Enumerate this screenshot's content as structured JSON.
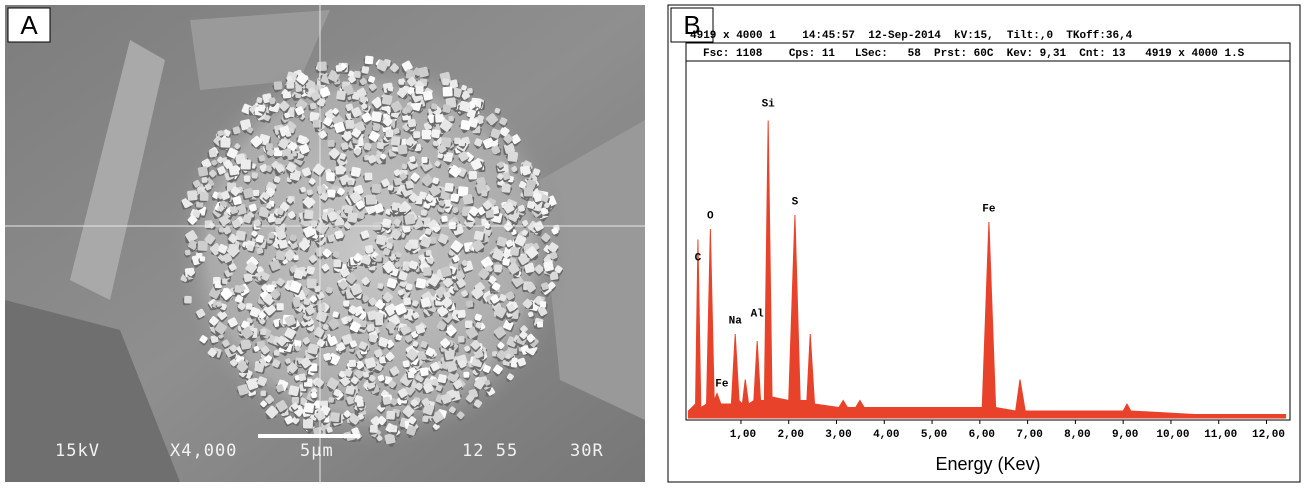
{
  "panel_a": {
    "label": "A",
    "voltage": "15kV",
    "magnification": "X4,000",
    "scale": "5µm",
    "code": "12 55",
    "detector": "30R"
  },
  "chart_data": {
    "type": "area",
    "panel_label": "B",
    "header_lines": [
      "4919 x 4000 1    14:45:57  12-Sep-2014  kV:15,  Tilt:,0  TKoff:36,4",
      "Fsc: 1108    Cps: 11   LSec:   58  Prst: 60C  Kev: 9,31  Cnt: 13   4919 x 4000 1.S"
    ],
    "xlabel": "Energy (Kev)",
    "color": "#e8432a",
    "x": [
      -0.1,
      0.05,
      0.1,
      0.16,
      0.28,
      0.36,
      0.44,
      0.5,
      0.58,
      0.8,
      0.88,
      0.96,
      1.03,
      1.09,
      1.16,
      1.27,
      1.34,
      1.41,
      1.49,
      1.57,
      1.65,
      2.0,
      2.13,
      2.24,
      2.38,
      2.45,
      2.54,
      3.05,
      3.14,
      3.23,
      3.4,
      3.49,
      3.58,
      4.5,
      5.5,
      6.05,
      6.19,
      6.33,
      6.75,
      6.84,
      6.95,
      8.0,
      9.0,
      9.08,
      9.16,
      10.5,
      12.4
    ],
    "values": [
      2,
      4,
      51,
      3,
      4,
      54,
      5,
      7,
      4,
      4,
      24,
      5,
      4,
      11,
      4,
      5,
      22,
      5,
      5,
      85,
      6,
      5,
      58,
      5,
      5,
      24,
      4,
      3,
      5,
      3,
      3,
      5,
      3,
      3,
      3,
      3,
      56,
      3,
      2,
      11,
      2,
      2,
      2,
      4,
      2,
      1,
      1
    ],
    "peak_labels": [
      {
        "text": "C",
        "x": 0.1,
        "y": 45
      },
      {
        "text": "O",
        "x": 0.36,
        "y": 57
      },
      {
        "text": "Fe",
        "x": 0.6,
        "y": 9
      },
      {
        "text": "Na",
        "x": 0.88,
        "y": 27
      },
      {
        "text": "Al",
        "x": 1.34,
        "y": 29
      },
      {
        "text": "Si",
        "x": 1.57,
        "y": 89
      },
      {
        "text": "S",
        "x": 2.13,
        "y": 61
      },
      {
        "text": "Fe",
        "x": 6.19,
        "y": 59
      }
    ],
    "xlim": [
      -0.15,
      12.45
    ],
    "ylim": [
      0,
      100
    ],
    "xticks": [
      {
        "value": 1,
        "label": "1,00"
      },
      {
        "value": 2,
        "label": "2,00"
      },
      {
        "value": 3,
        "label": "3,00"
      },
      {
        "value": 4,
        "label": "4,00"
      },
      {
        "value": 5,
        "label": "5,00"
      },
      {
        "value": 6,
        "label": "6,00"
      },
      {
        "value": 7,
        "label": "7,00"
      },
      {
        "value": 8,
        "label": "8,00"
      },
      {
        "value": 9,
        "label": "9,00"
      },
      {
        "value": 10,
        "label": "10,00"
      },
      {
        "value": 11,
        "label": "11,00"
      },
      {
        "value": 12,
        "label": "12,00"
      }
    ]
  }
}
